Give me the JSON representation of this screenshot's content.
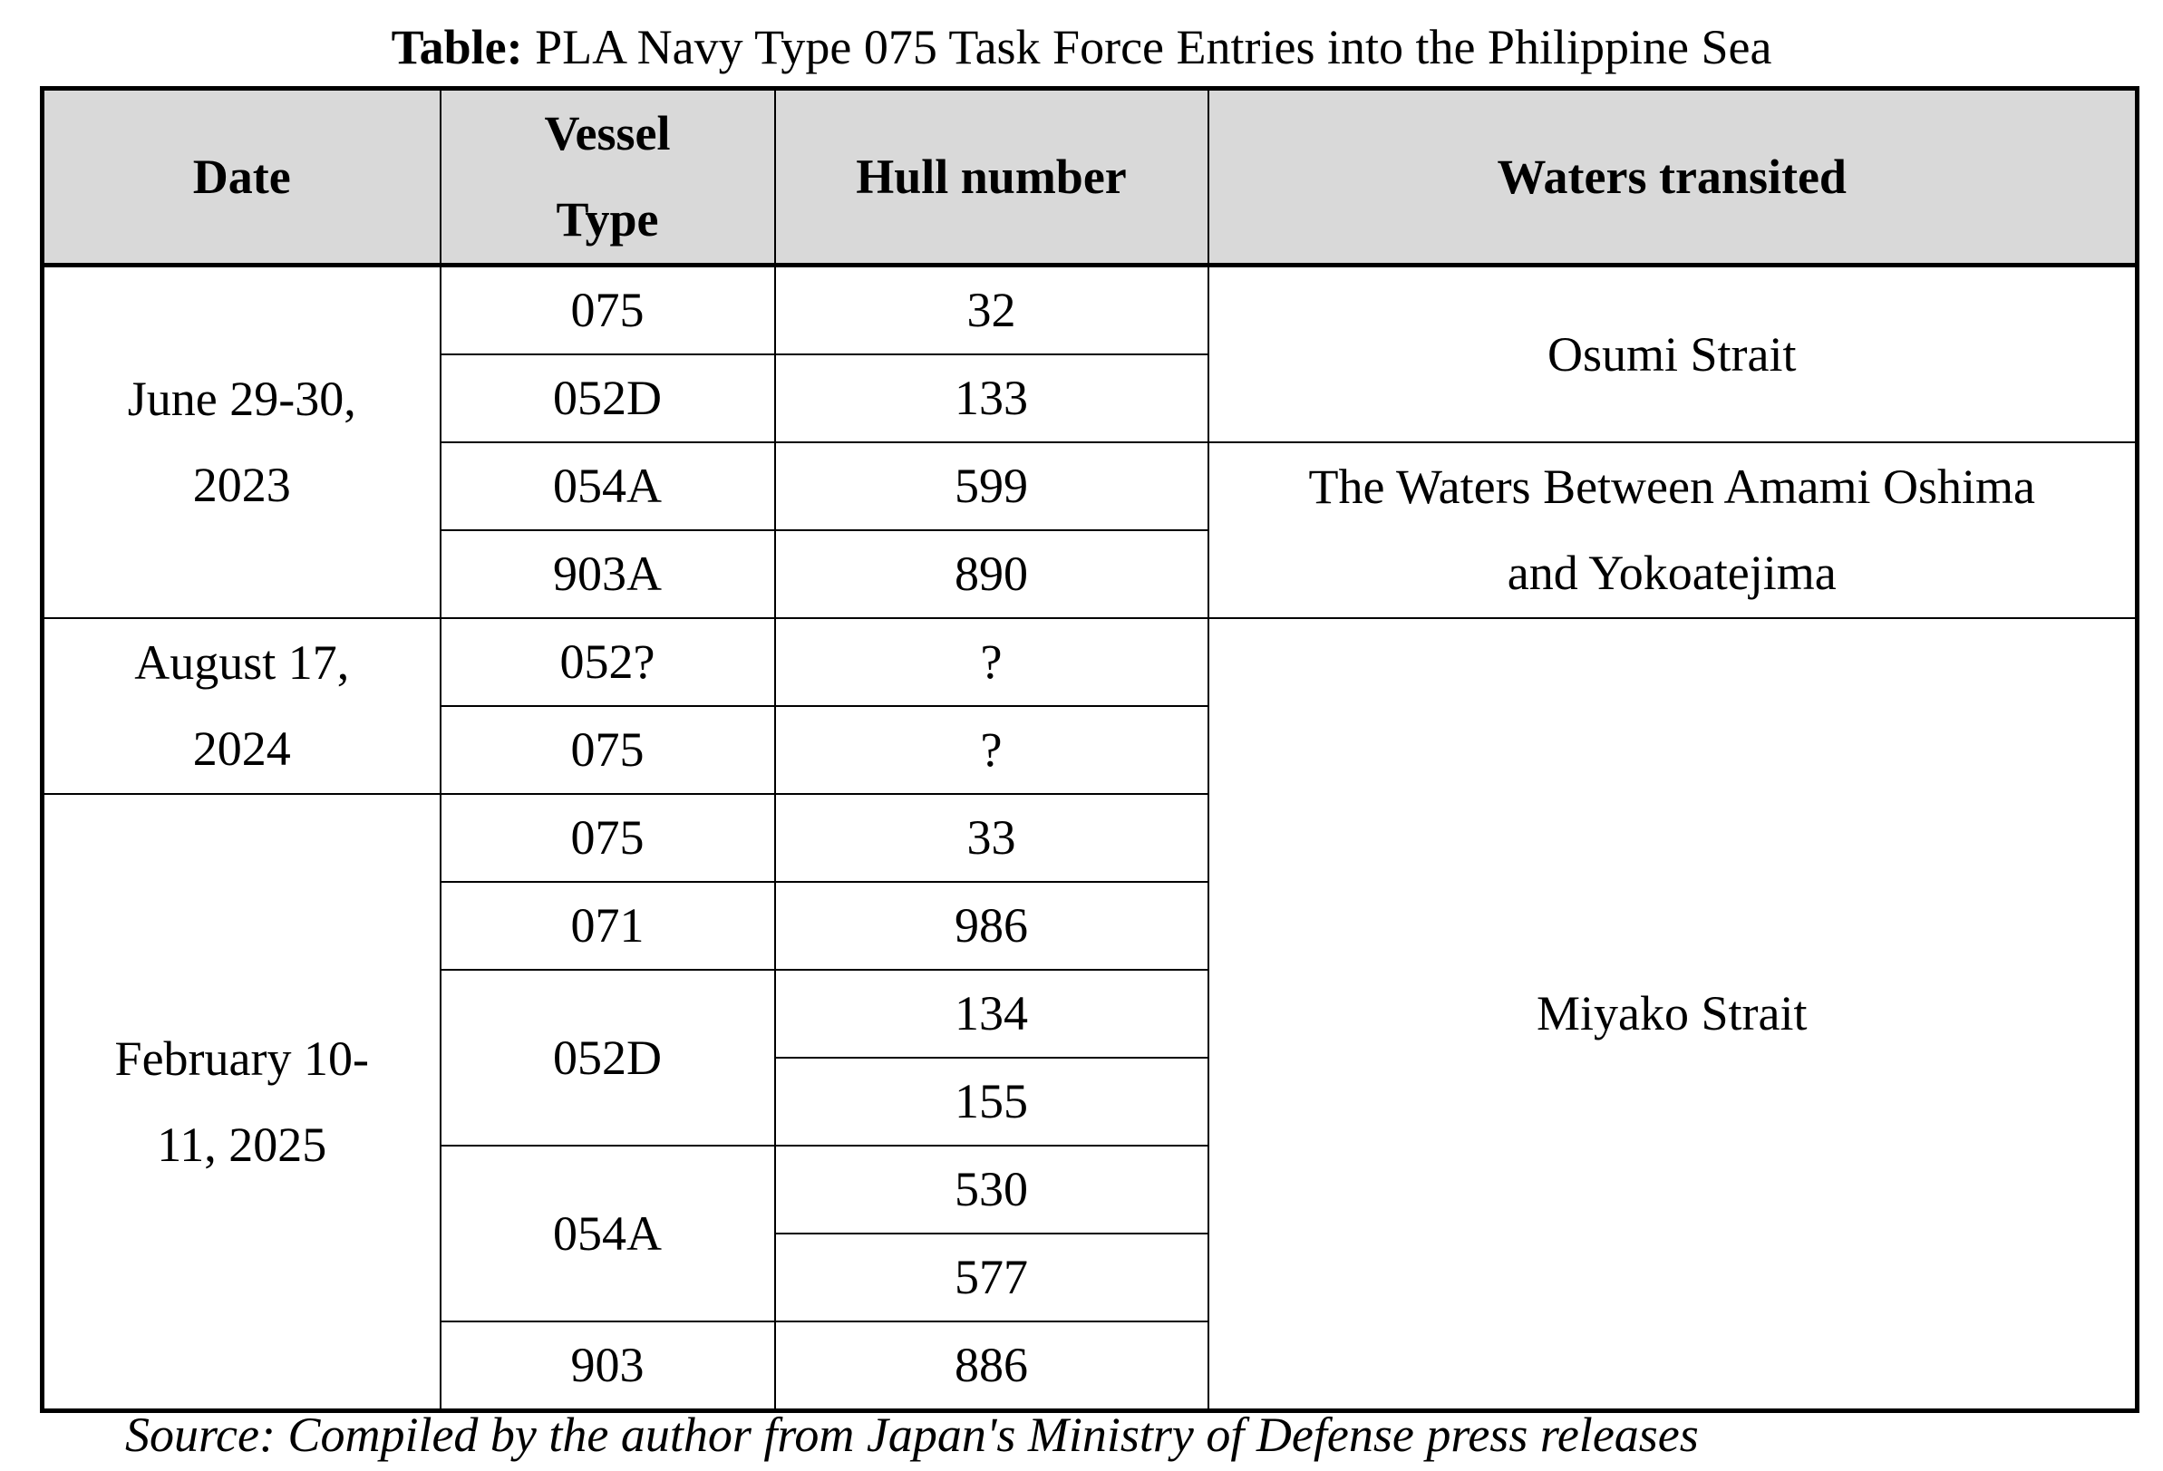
{
  "title": {
    "prefix": "Table:",
    "text": " PLA Navy Type 075 Task Force Entries into the Philippine Sea"
  },
  "headers": [
    "Date",
    "Vessel\nType",
    "Hull number",
    "Waters transited"
  ],
  "dates": [
    "June 29-30,\n2023",
    "August 17,\n2024",
    "February 10-\n11, 2025"
  ],
  "waters": [
    "Osumi Strait",
    "The Waters Between Amami Oshima\nand Yokoatejima",
    "Miyako Strait"
  ],
  "rows": [
    {
      "type": "075",
      "hull": "32"
    },
    {
      "type": "052D",
      "hull": "133"
    },
    {
      "type": "054A",
      "hull": "599"
    },
    {
      "type": "903A",
      "hull": "890"
    },
    {
      "type": "052?",
      "hull": "?"
    },
    {
      "type": "075",
      "hull": "?"
    },
    {
      "type": "075",
      "hull": "33"
    },
    {
      "type": "071",
      "hull": "986"
    },
    {
      "type": "052D",
      "hull": "134"
    },
    {
      "type": "",
      "hull": "155"
    },
    {
      "type": "054A",
      "hull": "530"
    },
    {
      "type": "",
      "hull": "577"
    },
    {
      "type": "903",
      "hull": "886"
    }
  ],
  "source": "Source: Compiled by the author from Japan's Ministry of Defense press releases"
}
